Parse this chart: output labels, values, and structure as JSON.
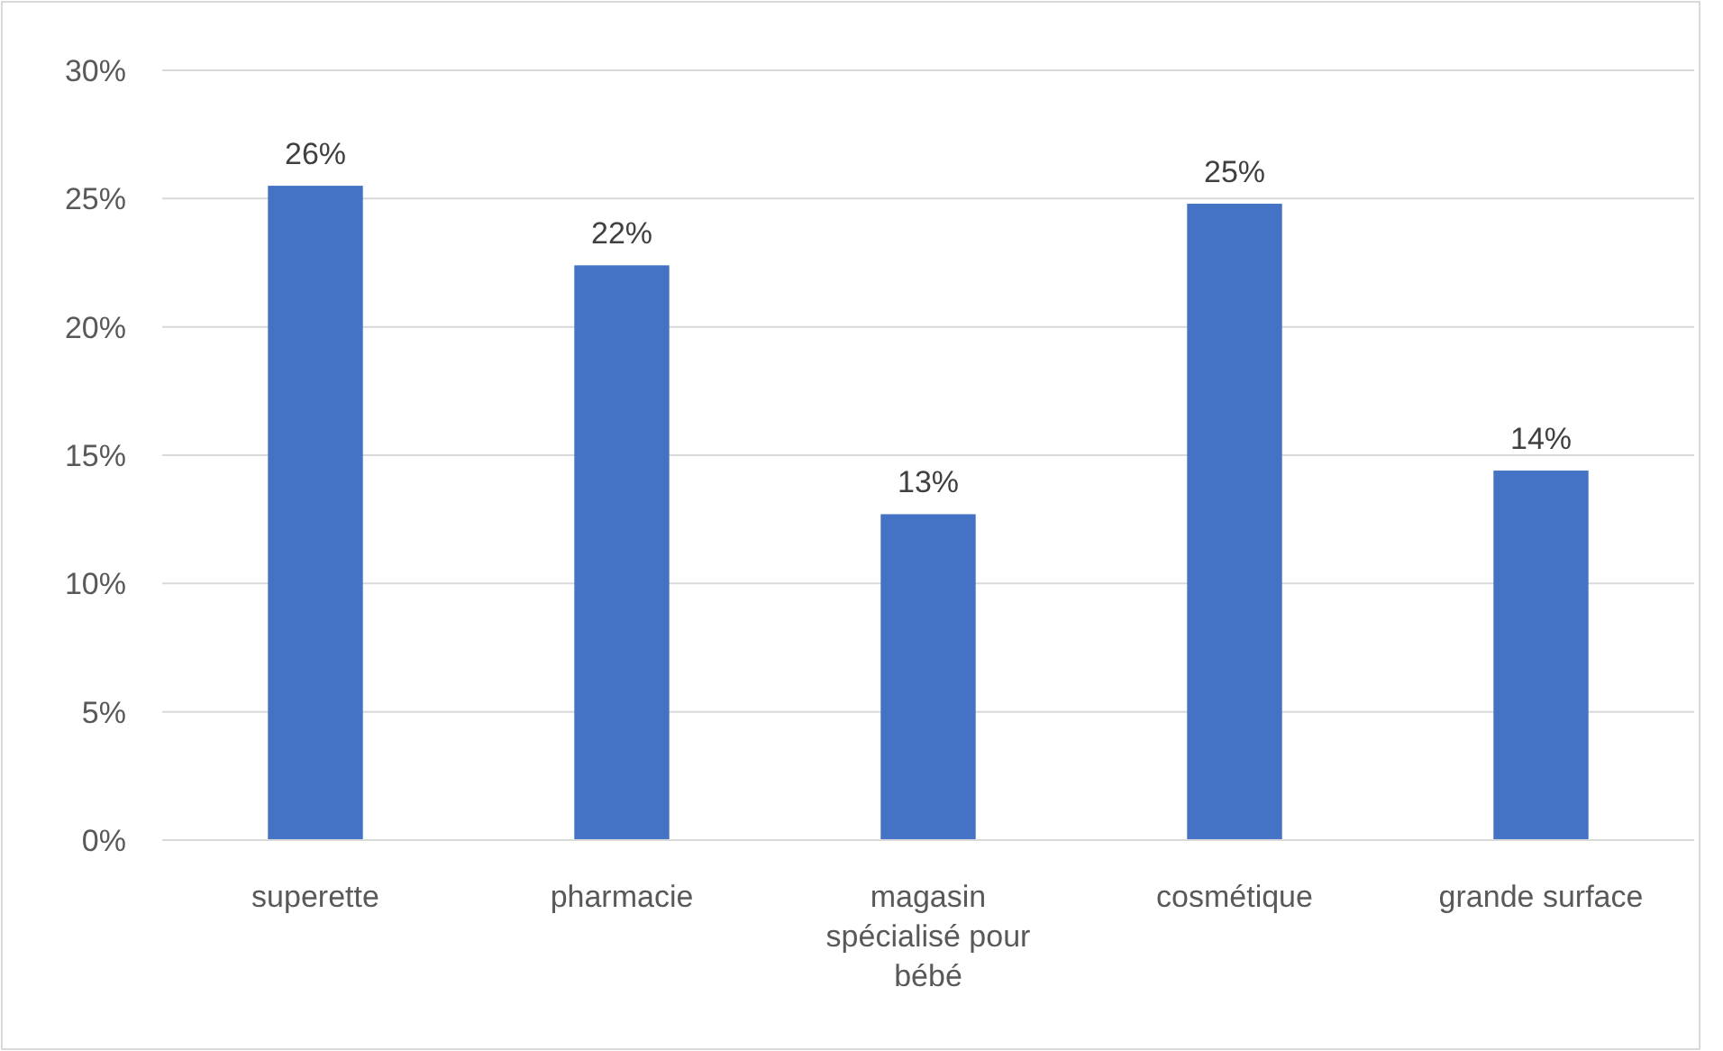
{
  "chart_data": {
    "type": "bar",
    "categories": [
      "superette",
      "pharmacie",
      "magasin spécialisé pour bébé",
      "cosmétique",
      "grande surface"
    ],
    "values": [
      25.5,
      22.4,
      12.7,
      24.8,
      14.4
    ],
    "value_labels": [
      "26%",
      "22%",
      "13%",
      "25%",
      "14%"
    ],
    "color": "#4472c4",
    "ylim": [
      0,
      30
    ],
    "yticks": [
      {
        "value": 0,
        "label": "0%"
      },
      {
        "value": 5,
        "label": "5%"
      },
      {
        "value": 10,
        "label": "10%"
      },
      {
        "value": 15,
        "label": "15%"
      },
      {
        "value": 20,
        "label": "20%"
      },
      {
        "value": 25,
        "label": "25%"
      },
      {
        "value": 30,
        "label": "30%"
      }
    ],
    "grid": "y"
  }
}
